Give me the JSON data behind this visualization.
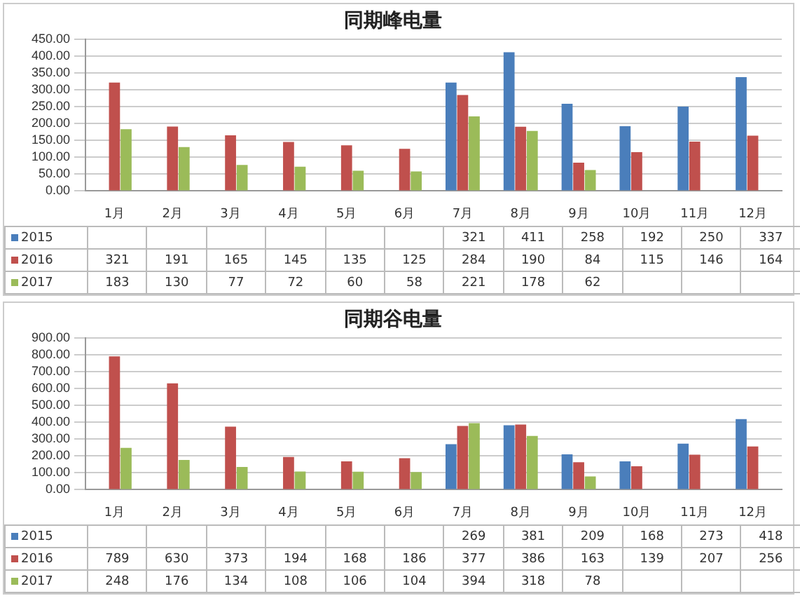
{
  "chart_data": [
    {
      "type": "bar",
      "title": "同期峰电量",
      "categories": [
        "1月",
        "2月",
        "3月",
        "4月",
        "5月",
        "6月",
        "7月",
        "8月",
        "9月",
        "10月",
        "11月",
        "12月"
      ],
      "series": [
        {
          "name": "2015",
          "color": "#4a7ebb",
          "values": [
            null,
            null,
            null,
            null,
            null,
            null,
            321,
            411,
            258,
            192,
            250,
            337
          ]
        },
        {
          "name": "2016",
          "color": "#c0504d",
          "values": [
            321,
            191,
            165,
            145,
            135,
            125,
            284,
            190,
            84,
            115,
            146,
            164
          ]
        },
        {
          "name": "2017",
          "color": "#9bbb59",
          "values": [
            183,
            130,
            77,
            72,
            60,
            58,
            221,
            178,
            62,
            null,
            null,
            null
          ]
        }
      ],
      "ylim": [
        0,
        450
      ],
      "yticks": [
        {
          "value": 0,
          "label": "0.00"
        },
        {
          "value": 50,
          "label": "50.00"
        },
        {
          "value": 100,
          "label": "100.00"
        },
        {
          "value": 150,
          "label": "150.00"
        },
        {
          "value": 200,
          "label": "200.00"
        },
        {
          "value": 250,
          "label": "250.00"
        },
        {
          "value": 300,
          "label": "300.00"
        },
        {
          "value": 350,
          "label": "350.00"
        },
        {
          "value": 400,
          "label": "400.00"
        },
        {
          "value": 450,
          "label": "450.00"
        }
      ],
      "grid": "y",
      "legend": "bottom",
      "data_labels": true
    },
    {
      "type": "bar",
      "title": "同期谷电量",
      "categories": [
        "1月",
        "2月",
        "3月",
        "4月",
        "5月",
        "6月",
        "7月",
        "8月",
        "9月",
        "10月",
        "11月",
        "12月"
      ],
      "series": [
        {
          "name": "2015",
          "color": "#4a7ebb",
          "values": [
            null,
            null,
            null,
            null,
            null,
            null,
            269,
            381,
            209,
            168,
            273,
            418
          ]
        },
        {
          "name": "2016",
          "color": "#c0504d",
          "values": [
            789,
            630,
            373,
            194,
            168,
            186,
            377,
            386,
            163,
            139,
            207,
            256
          ]
        },
        {
          "name": "2017",
          "color": "#9bbb59",
          "values": [
            248,
            176,
            134,
            108,
            106,
            104,
            394,
            318,
            78,
            null,
            null,
            null
          ]
        }
      ],
      "ylim": [
        0,
        900
      ],
      "yticks": [
        {
          "value": 0,
          "label": "0.00"
        },
        {
          "value": 100,
          "label": "100.00"
        },
        {
          "value": 200,
          "label": "200.00"
        },
        {
          "value": 300,
          "label": "300.00"
        },
        {
          "value": 400,
          "label": "400.00"
        },
        {
          "value": 500,
          "label": "500.00"
        },
        {
          "value": 600,
          "label": "600.00"
        },
        {
          "value": 700,
          "label": "700.00"
        },
        {
          "value": 800,
          "label": "800.00"
        },
        {
          "value": 900,
          "label": "900.00"
        }
      ],
      "grid": "y",
      "legend": "bottom",
      "data_labels": true
    }
  ]
}
